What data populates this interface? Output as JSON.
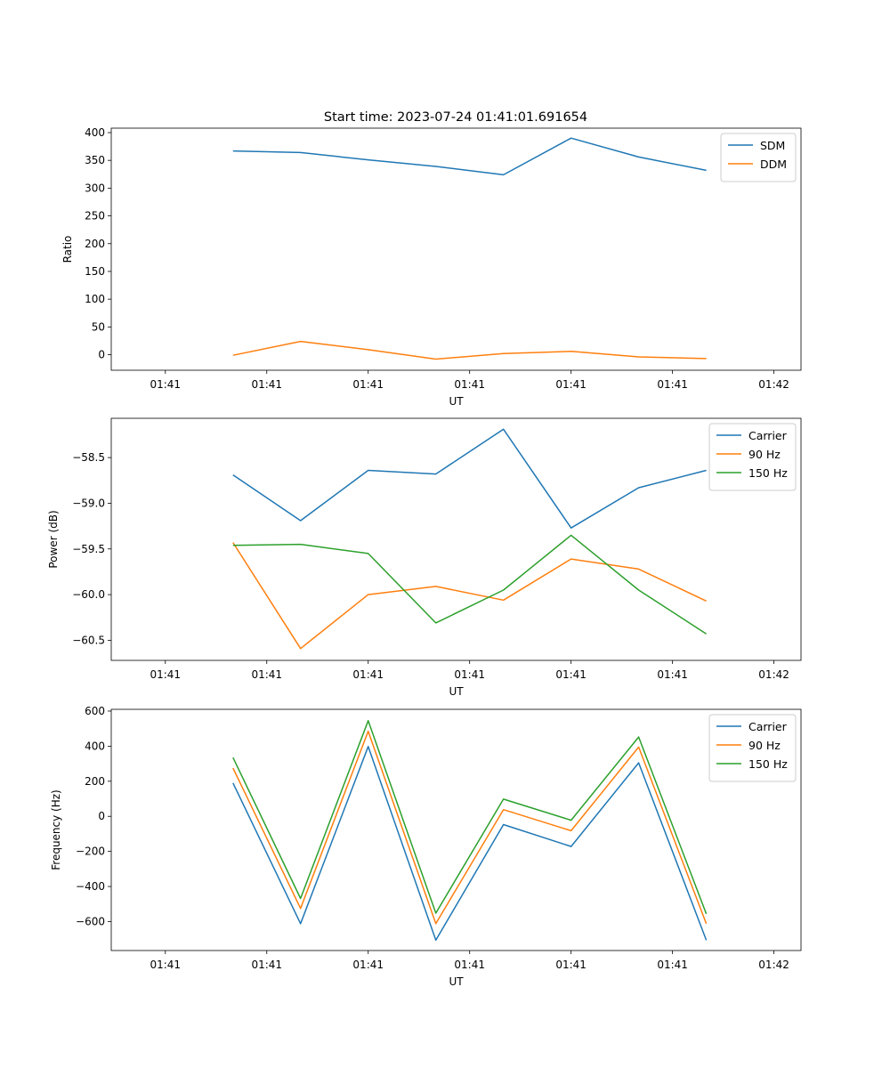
{
  "figure_title": "Start time: 2023-07-24 01:41:01.691654",
  "colors": {
    "blue": "#1f77b4",
    "orange": "#ff7f0e",
    "green": "#2ca02c"
  },
  "chart_data": [
    {
      "type": "line",
      "xlabel": "UT",
      "ylabel": "Ratio",
      "x_tick_labels": [
        "01:41",
        "01:41",
        "01:41",
        "01:41",
        "01:41",
        "01:41",
        "01:42"
      ],
      "y_ticks": [
        0,
        50,
        100,
        150,
        200,
        250,
        300,
        350,
        400
      ],
      "y_tick_labels": [
        "0",
        "50",
        "100",
        "150",
        "200",
        "250",
        "300",
        "350",
        "400"
      ],
      "xlim": [
        -0.8,
        9.4
      ],
      "ylim": [
        -28,
        408
      ],
      "x": [
        1,
        2,
        3,
        4,
        5,
        6,
        7,
        8
      ],
      "legend_position": "top-right",
      "series": [
        {
          "name": "SDM",
          "color": "#1f77b4",
          "values": [
            367,
            364,
            351,
            339,
            324,
            390,
            356,
            332
          ]
        },
        {
          "name": "DDM",
          "color": "#ff7f0e",
          "values": [
            -1,
            24,
            9,
            -8,
            2,
            6,
            -4,
            -7
          ]
        }
      ]
    },
    {
      "type": "line",
      "xlabel": "UT",
      "ylabel": "Power (dB)",
      "x_tick_labels": [
        "01:41",
        "01:41",
        "01:41",
        "01:41",
        "01:41",
        "01:41",
        "01:42"
      ],
      "y_ticks": [
        -60.5,
        -60.0,
        -59.5,
        -59.0,
        -58.5
      ],
      "y_tick_labels": [
        "−60.5",
        "−60.0",
        "−59.5",
        "−59.0",
        "−58.5"
      ],
      "xlim": [
        -0.8,
        9.4
      ],
      "ylim": [
        -60.72,
        -58.07
      ],
      "x": [
        1,
        2,
        3,
        4,
        5,
        6,
        7,
        8
      ],
      "legend_position": "top-right",
      "series": [
        {
          "name": "Carrier",
          "color": "#1f77b4",
          "values": [
            -58.69,
            -59.19,
            -58.64,
            -58.68,
            -58.19,
            -59.27,
            -58.83,
            -58.64
          ]
        },
        {
          "name": "90 Hz",
          "color": "#ff7f0e",
          "values": [
            -59.43,
            -60.59,
            -60.0,
            -59.91,
            -60.06,
            -59.61,
            -59.72,
            -60.07
          ]
        },
        {
          "name": "150 Hz",
          "color": "#2ca02c",
          "values": [
            -59.46,
            -59.45,
            -59.55,
            -60.31,
            -59.95,
            -59.35,
            -59.95,
            -60.43
          ]
        }
      ]
    },
    {
      "type": "line",
      "xlabel": "UT",
      "ylabel": "Frequency (Hz)",
      "x_tick_labels": [
        "01:41",
        "01:41",
        "01:41",
        "01:41",
        "01:41",
        "01:41",
        "01:42"
      ],
      "y_ticks": [
        -600,
        -400,
        -200,
        0,
        200,
        400,
        600
      ],
      "y_tick_labels": [
        "−600",
        "−400",
        "−200",
        "0",
        "200",
        "400",
        "600"
      ],
      "xlim": [
        -0.8,
        9.4
      ],
      "ylim": [
        -765,
        610
      ],
      "x": [
        1,
        2,
        3,
        4,
        5,
        6,
        7,
        8
      ],
      "legend_position": "top-right",
      "series": [
        {
          "name": "Carrier",
          "color": "#1f77b4",
          "values": [
            190,
            -612,
            398,
            -706,
            -47,
            -172,
            305,
            -706
          ]
        },
        {
          "name": "90 Hz",
          "color": "#ff7f0e",
          "values": [
            275,
            -525,
            485,
            -612,
            38,
            -82,
            395,
            -612
          ]
        },
        {
          "name": "150 Hz",
          "color": "#2ca02c",
          "values": [
            335,
            -468,
            545,
            -552,
            98,
            -22,
            452,
            -556
          ]
        }
      ]
    }
  ]
}
